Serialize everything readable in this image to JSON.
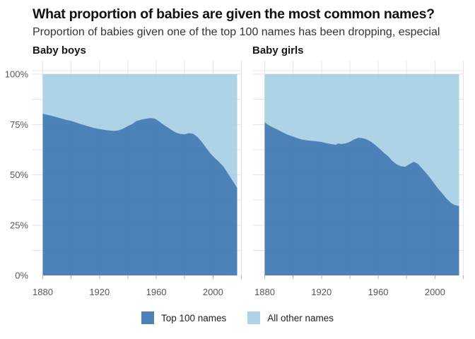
{
  "header": {
    "title": "What proportion of babies are given the most common names?",
    "subtitle": "Proportion of babies given one of the top 100 names has been dropping, especial"
  },
  "legend": {
    "items": [
      {
        "label": "Top 100 names",
        "color": "#4d82b8"
      },
      {
        "label": "All other names",
        "color": "#aed2e6"
      }
    ]
  },
  "chart_data": [
    {
      "type": "area",
      "variant": "stacked-100-percent",
      "title": "Baby boys",
      "x_axis": {
        "grid_start": 1880,
        "grid_end": 2020,
        "grid_step": 20,
        "labeled_ticks": [
          1880,
          1920,
          1960,
          2000
        ]
      },
      "y_axis": {
        "tick_pcts": [
          0,
          25,
          50,
          75,
          100
        ],
        "tick_labels": [
          "0%",
          "25%",
          "50%",
          "75%",
          "100%"
        ],
        "minor_grid_step_pct": 12.5,
        "show_labels": true
      },
      "xlim_data": [
        1880,
        2017
      ],
      "ylim": [
        0,
        100
      ],
      "x": [
        1880,
        1882,
        1885,
        1888,
        1890,
        1893,
        1896,
        1900,
        1903,
        1906,
        1910,
        1913,
        1916,
        1920,
        1923,
        1926,
        1930,
        1933,
        1936,
        1940,
        1943,
        1946,
        1950,
        1953,
        1956,
        1959,
        1962,
        1965,
        1968,
        1971,
        1974,
        1977,
        1980,
        1983,
        1986,
        1989,
        1992,
        1995,
        1998,
        2001,
        2004,
        2007,
        2010,
        2013,
        2015,
        2017
      ],
      "series": [
        {
          "name": "Top 100 names",
          "color": "#4d82b8",
          "values": [
            80.4,
            80.0,
            79.5,
            79.0,
            78.6,
            78.0,
            77.4,
            76.8,
            76.1,
            75.4,
            74.5,
            73.9,
            73.3,
            72.7,
            72.4,
            72.1,
            71.8,
            72.0,
            72.7,
            74.2,
            75.2,
            76.7,
            77.5,
            77.9,
            78.2,
            77.9,
            76.6,
            74.9,
            73.6,
            72.2,
            70.9,
            70.3,
            70.1,
            70.7,
            70.4,
            68.8,
            66.5,
            63.5,
            60.8,
            58.5,
            56.6,
            54.4,
            51.3,
            47.9,
            45.8,
            43.4
          ]
        },
        {
          "name": "All other names",
          "color": "#aed2e6",
          "values": [
            19.6,
            20.0,
            20.5,
            21.0,
            21.4,
            22.0,
            22.6,
            23.2,
            23.9,
            24.6,
            25.5,
            26.1,
            26.7,
            27.3,
            27.6,
            27.9,
            28.2,
            28.0,
            27.3,
            25.8,
            24.8,
            23.3,
            22.5,
            22.1,
            21.8,
            22.1,
            23.4,
            25.1,
            26.4,
            27.8,
            29.1,
            29.7,
            29.9,
            29.3,
            29.6,
            31.2,
            33.5,
            36.5,
            39.2,
            41.5,
            43.4,
            45.6,
            48.7,
            52.1,
            54.2,
            56.6
          ]
        }
      ]
    },
    {
      "type": "area",
      "variant": "stacked-100-percent",
      "title": "Baby girls",
      "x_axis": {
        "grid_start": 1880,
        "grid_end": 2020,
        "grid_step": 20,
        "labeled_ticks": [
          1880,
          1920,
          1960,
          2000
        ]
      },
      "y_axis": {
        "tick_pcts": [
          0,
          25,
          50,
          75,
          100
        ],
        "tick_labels": [
          "0%",
          "25%",
          "50%",
          "75%",
          "100%"
        ],
        "minor_grid_step_pct": 12.5,
        "show_labels": false
      },
      "xlim_data": [
        1880,
        2017
      ],
      "ylim": [
        0,
        100
      ],
      "x": [
        1880,
        1882,
        1885,
        1888,
        1890,
        1893,
        1896,
        1900,
        1903,
        1906,
        1910,
        1913,
        1916,
        1920,
        1923,
        1926,
        1930,
        1932,
        1934,
        1937,
        1940,
        1943,
        1946,
        1949,
        1952,
        1955,
        1958,
        1961,
        1964,
        1967,
        1970,
        1973,
        1976,
        1979,
        1982,
        1985,
        1988,
        1990,
        1993,
        1996,
        1999,
        2002,
        2005,
        2008,
        2011,
        2013,
        2015,
        2017
      ],
      "series": [
        {
          "name": "Top 100 names",
          "color": "#4d82b8",
          "values": [
            76.2,
            75.0,
            73.8,
            72.8,
            72.1,
            71.0,
            70.0,
            69.0,
            68.2,
            67.6,
            67.1,
            66.9,
            66.7,
            66.3,
            65.8,
            65.4,
            64.9,
            65.6,
            65.3,
            65.6,
            66.4,
            67.6,
            68.4,
            68.2,
            67.6,
            66.4,
            64.8,
            62.9,
            61.0,
            59.2,
            56.9,
            55.2,
            54.3,
            54.0,
            55.3,
            56.5,
            55.5,
            53.8,
            51.5,
            49.0,
            46.2,
            43.3,
            40.9,
            38.3,
            36.2,
            35.3,
            34.8,
            34.5
          ]
        },
        {
          "name": "All other names",
          "color": "#aed2e6",
          "values": [
            23.8,
            25.0,
            26.2,
            27.2,
            27.9,
            29.0,
            30.0,
            31.0,
            31.8,
            32.4,
            32.9,
            33.1,
            33.3,
            33.7,
            34.2,
            34.6,
            35.1,
            34.4,
            34.7,
            34.4,
            33.6,
            32.4,
            31.6,
            31.8,
            32.4,
            33.6,
            35.2,
            37.1,
            39.0,
            40.8,
            43.1,
            44.8,
            45.7,
            46.0,
            44.7,
            43.5,
            44.5,
            46.2,
            48.5,
            51.0,
            53.8,
            56.7,
            59.1,
            61.7,
            63.8,
            64.7,
            65.2,
            65.5
          ]
        }
      ]
    }
  ]
}
